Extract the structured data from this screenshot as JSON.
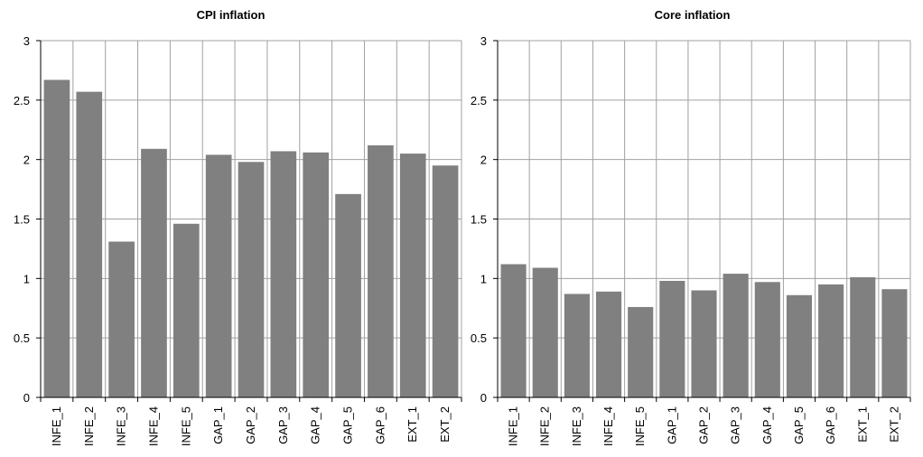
{
  "chart_data": [
    {
      "type": "bar",
      "title": "CPI inflation",
      "categories": [
        "INFE_1",
        "INFE_2",
        "INFE_3",
        "INFE_4",
        "INFE_5",
        "GAP_1",
        "GAP_2",
        "GAP_3",
        "GAP_4",
        "GAP_5",
        "GAP_6",
        "EXT_1",
        "EXT_2"
      ],
      "values": [
        2.67,
        2.57,
        1.31,
        2.09,
        1.46,
        2.04,
        1.98,
        2.07,
        2.06,
        1.71,
        2.12,
        2.05,
        1.95
      ],
      "y_ticks": [
        "0",
        "0.5",
        "1",
        "1.5",
        "2",
        "2.5",
        "3"
      ],
      "ylim": [
        0,
        3
      ],
      "grid": true,
      "bar_color": "#808080"
    },
    {
      "type": "bar",
      "title": "Core inflation",
      "categories": [
        "INFE_1",
        "INFE_2",
        "INFE_3",
        "INFE_4",
        "INFE_5",
        "GAP_1",
        "GAP_2",
        "GAP_3",
        "GAP_4",
        "GAP_5",
        "GAP_6",
        "EXT_1",
        "EXT_2"
      ],
      "values": [
        1.12,
        1.09,
        0.87,
        0.89,
        0.76,
        0.98,
        0.9,
        1.04,
        0.97,
        0.86,
        0.95,
        1.01,
        0.91
      ],
      "y_ticks": [
        "0",
        "0.5",
        "1",
        "1.5",
        "2",
        "2.5",
        "3"
      ],
      "ylim": [
        0,
        3
      ],
      "grid": true,
      "bar_color": "#808080"
    }
  ]
}
